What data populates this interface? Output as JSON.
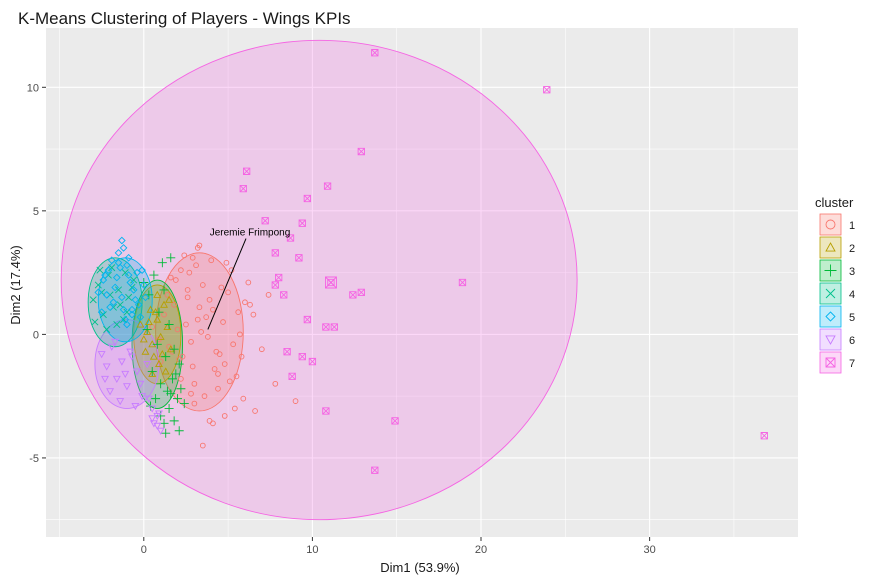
{
  "chart_data": {
    "type": "scatter",
    "title": "K-Means Clustering of Players - Wings KPIs",
    "xlabel": "Dim1 (53.9%)",
    "ylabel": "Dim2 (17.4%)",
    "xlim": [
      -5.8,
      38.8
    ],
    "ylim": [
      -8.2,
      12.4
    ],
    "x_ticks": [
      0,
      10,
      20,
      30
    ],
    "y_ticks": [
      -5,
      0,
      5,
      10
    ],
    "grid": true,
    "legend_title": "cluster",
    "legend_position": "right",
    "annotation": {
      "text": "Jeremie Frimpong",
      "x": 3.8,
      "y": 0.2,
      "label_x": 6.3,
      "label_y": 4.0
    },
    "series": [
      {
        "name": "1",
        "color": "#F8766D",
        "marker": "circle",
        "ellipse": {
          "cx": 3.3,
          "cy": 0.1,
          "rx": 2.6,
          "ry": 3.2
        },
        "x": [
          0.5,
          0.9,
          1.2,
          1.5,
          1.8,
          2.0,
          2.3,
          2.6,
          2.9,
          3.2,
          3.5,
          3.8,
          4.1,
          4.4,
          4.7,
          5.0,
          5.3,
          5.6,
          1.0,
          1.4,
          1.9,
          2.2,
          2.7,
          3.0,
          3.4,
          3.9,
          4.3,
          4.8,
          5.2,
          5.7,
          2.4,
          3.1,
          3.6,
          4.0,
          4.6,
          5.1,
          2.8,
          3.3,
          4.5,
          1.6,
          2.1,
          2.5,
          3.7,
          4.2,
          6.0,
          6.5,
          7.0,
          7.4,
          5.9,
          6.2,
          2.8,
          3.2,
          4.9,
          5.4,
          3.0,
          2.6,
          2.2,
          4.4,
          5.8,
          6.6,
          7.8,
          9.0,
          1.7,
          3.5,
          4.1,
          4.8,
          2.9,
          3.3,
          3.9,
          5.5,
          6.3
        ],
        "y": [
          0.3,
          -0.2,
          0.8,
          -0.5,
          1.2,
          0.2,
          -0.9,
          1.5,
          -1.3,
          0.6,
          2.0,
          -0.1,
          1.0,
          -1.6,
          0.5,
          1.7,
          -0.4,
          0.9,
          -1.1,
          1.6,
          2.2,
          -1.8,
          2.5,
          -2.0,
          0.1,
          1.4,
          -0.7,
          -1.2,
          2.6,
          0.0,
          3.2,
          2.8,
          -2.5,
          3.0,
          1.9,
          -1.9,
          -0.3,
          1.1,
          -0.8,
          2.3,
          -1.0,
          0.4,
          0.7,
          -1.4,
          1.3,
          0.8,
          -0.6,
          1.6,
          -2.6,
          2.1,
          -2.4,
          3.5,
          2.9,
          -3.0,
          -2.8,
          1.8,
          2.6,
          -2.2,
          -0.9,
          -3.1,
          -2.0,
          -2.7,
          -0.7,
          -4.5,
          -3.6,
          -3.3,
          3.1,
          3.6,
          -3.5,
          -1.7,
          1.2
        ]
      },
      {
        "name": "2",
        "color": "#B79F00",
        "marker": "triangle",
        "ellipse": {
          "cx": 0.8,
          "cy": 0.0,
          "rx": 1.4,
          "ry": 2.0
        },
        "x": [
          0.2,
          0.5,
          0.8,
          1.1,
          1.4,
          0.0,
          0.4,
          0.9,
          1.2,
          1.6,
          0.3,
          0.7,
          1.0,
          1.3,
          0.6,
          -0.2,
          0.1,
          1.5,
          0.8,
          0.5
        ],
        "y": [
          0.1,
          -0.4,
          0.6,
          -0.8,
          0.3,
          -0.2,
          1.0,
          -1.2,
          1.2,
          -0.6,
          0.5,
          0.9,
          -0.1,
          -1.5,
          -0.9,
          0.4,
          -0.7,
          1.4,
          1.6,
          -1.6
        ]
      },
      {
        "name": "3",
        "color": "#00BA38",
        "marker": "plus",
        "ellipse": {
          "cx": 0.8,
          "cy": -0.4,
          "rx": 1.5,
          "ry": 2.6
        },
        "x": [
          0.0,
          0.3,
          0.6,
          0.9,
          1.2,
          1.5,
          1.8,
          2.1,
          0.5,
          1.0,
          1.4,
          1.7,
          0.2,
          0.8,
          1.3,
          1.9,
          2.2,
          1.1,
          1.6,
          0.7,
          0.4,
          1.0,
          1.5,
          2.0,
          2.4,
          1.2,
          2.1,
          1.8,
          1.3,
          1.6
        ],
        "y": [
          2.1,
          1.6,
          2.4,
          0.9,
          1.8,
          0.4,
          -0.6,
          -1.2,
          -1.5,
          -2.0,
          -2.3,
          -1.8,
          0.2,
          -0.4,
          -0.9,
          -1.6,
          -2.2,
          2.9,
          3.1,
          -2.6,
          -2.9,
          -3.3,
          -3.0,
          -2.6,
          -2.8,
          -3.6,
          -3.9,
          -3.5,
          -4.0,
          -2.4
        ]
      },
      {
        "name": "4",
        "color": "#00C08B",
        "marker": "cross",
        "ellipse": {
          "cx": -1.7,
          "cy": 1.3,
          "rx": 1.6,
          "ry": 1.8
        },
        "x": [
          -3.0,
          -2.7,
          -2.4,
          -2.1,
          -1.8,
          -1.5,
          -1.2,
          -0.9,
          -0.6,
          -2.9,
          -2.5,
          -2.2,
          -1.9,
          -1.4,
          -1.0,
          -0.7,
          -2.6,
          -2.0,
          -1.6,
          -1.1
        ],
        "y": [
          1.4,
          2.0,
          0.8,
          2.4,
          1.1,
          1.8,
          0.6,
          1.5,
          2.2,
          0.5,
          1.7,
          0.2,
          2.7,
          1.2,
          0.9,
          1.9,
          2.6,
          1.6,
          0.4,
          2.5
        ]
      },
      {
        "name": "5",
        "color": "#00B4F0",
        "marker": "diamond",
        "ellipse": {
          "cx": -1.1,
          "cy": 1.4,
          "rx": 1.6,
          "ry": 1.7
        },
        "x": [
          -2.7,
          -2.4,
          -2.1,
          -1.8,
          -1.5,
          -1.2,
          -0.9,
          -0.6,
          -0.3,
          0.0,
          -2.5,
          -2.2,
          -1.9,
          -1.6,
          -1.3,
          -1.0,
          -0.7,
          -0.4,
          -2.0,
          -1.7,
          -1.4,
          -1.1,
          -0.8,
          -0.5,
          -1.5,
          -1.2,
          -0.9,
          -2.3,
          -0.2,
          0.1,
          -0.1,
          -1.3,
          -1.0,
          -0.7
        ],
        "y": [
          1.7,
          2.2,
          2.6,
          1.3,
          2.9,
          1.0,
          2.4,
          1.8,
          1.2,
          2.0,
          0.9,
          1.6,
          3.0,
          2.3,
          1.5,
          2.8,
          0.8,
          2.5,
          1.1,
          1.9,
          2.7,
          0.6,
          2.1,
          1.4,
          3.3,
          3.5,
          3.1,
          2.4,
          0.7,
          1.5,
          2.6,
          3.8,
          0.4,
          1.0
        ]
      },
      {
        "name": "6",
        "color": "#C77CFF",
        "marker": "triangle-down",
        "ellipse": {
          "cx": -1.0,
          "cy": -1.2,
          "rx": 1.9,
          "ry": 1.8
        },
        "x": [
          -2.5,
          -2.2,
          -1.9,
          -1.6,
          -1.3,
          -1.0,
          -0.7,
          -0.4,
          -0.1,
          0.2,
          -2.3,
          -2.0,
          -1.7,
          -1.4,
          -1.1,
          -0.8,
          -0.5,
          -0.2,
          0.5,
          0.8,
          0.3,
          0.6,
          0.9,
          0.5,
          0.8,
          1.0
        ],
        "y": [
          -0.8,
          -1.3,
          -0.5,
          -1.8,
          -1.1,
          -2.1,
          -0.9,
          -1.5,
          -2.5,
          -1.2,
          -1.8,
          -2.3,
          -0.3,
          -2.7,
          -1.6,
          -0.7,
          -2.9,
          -2.0,
          -3.0,
          -3.3,
          -2.6,
          -3.6,
          -3.2,
          -3.4,
          -3.7,
          -3.9
        ]
      },
      {
        "name": "7",
        "color": "#F564E3",
        "marker": "square-cross",
        "ellipse": {
          "cx": 10.4,
          "cy": 2.2,
          "rx": 15.3,
          "ry": 9.7
        },
        "x": [
          13.7,
          23.9,
          12.9,
          6.1,
          10.9,
          9.7,
          7.2,
          9.4,
          5.9,
          8.7,
          7.8,
          9.2,
          8.0,
          7.8,
          8.3,
          11.1,
          12.4,
          12.9,
          18.9,
          9.7,
          10.8,
          11.3,
          8.5,
          9.4,
          10.0,
          8.8,
          10.8,
          14.9,
          13.7,
          36.8
        ],
        "y": [
          11.4,
          9.9,
          7.4,
          6.6,
          6.0,
          5.5,
          4.6,
          4.5,
          5.9,
          3.9,
          3.3,
          3.1,
          2.3,
          2.0,
          1.6,
          2.1,
          1.6,
          1.7,
          2.1,
          0.6,
          0.3,
          0.3,
          -0.7,
          -0.9,
          -1.1,
          -1.7,
          -3.1,
          -3.5,
          -5.5,
          -4.1
        ]
      }
    ],
    "large_marker": {
      "series": "7",
      "x": 11.1,
      "y": 2.1
    }
  }
}
